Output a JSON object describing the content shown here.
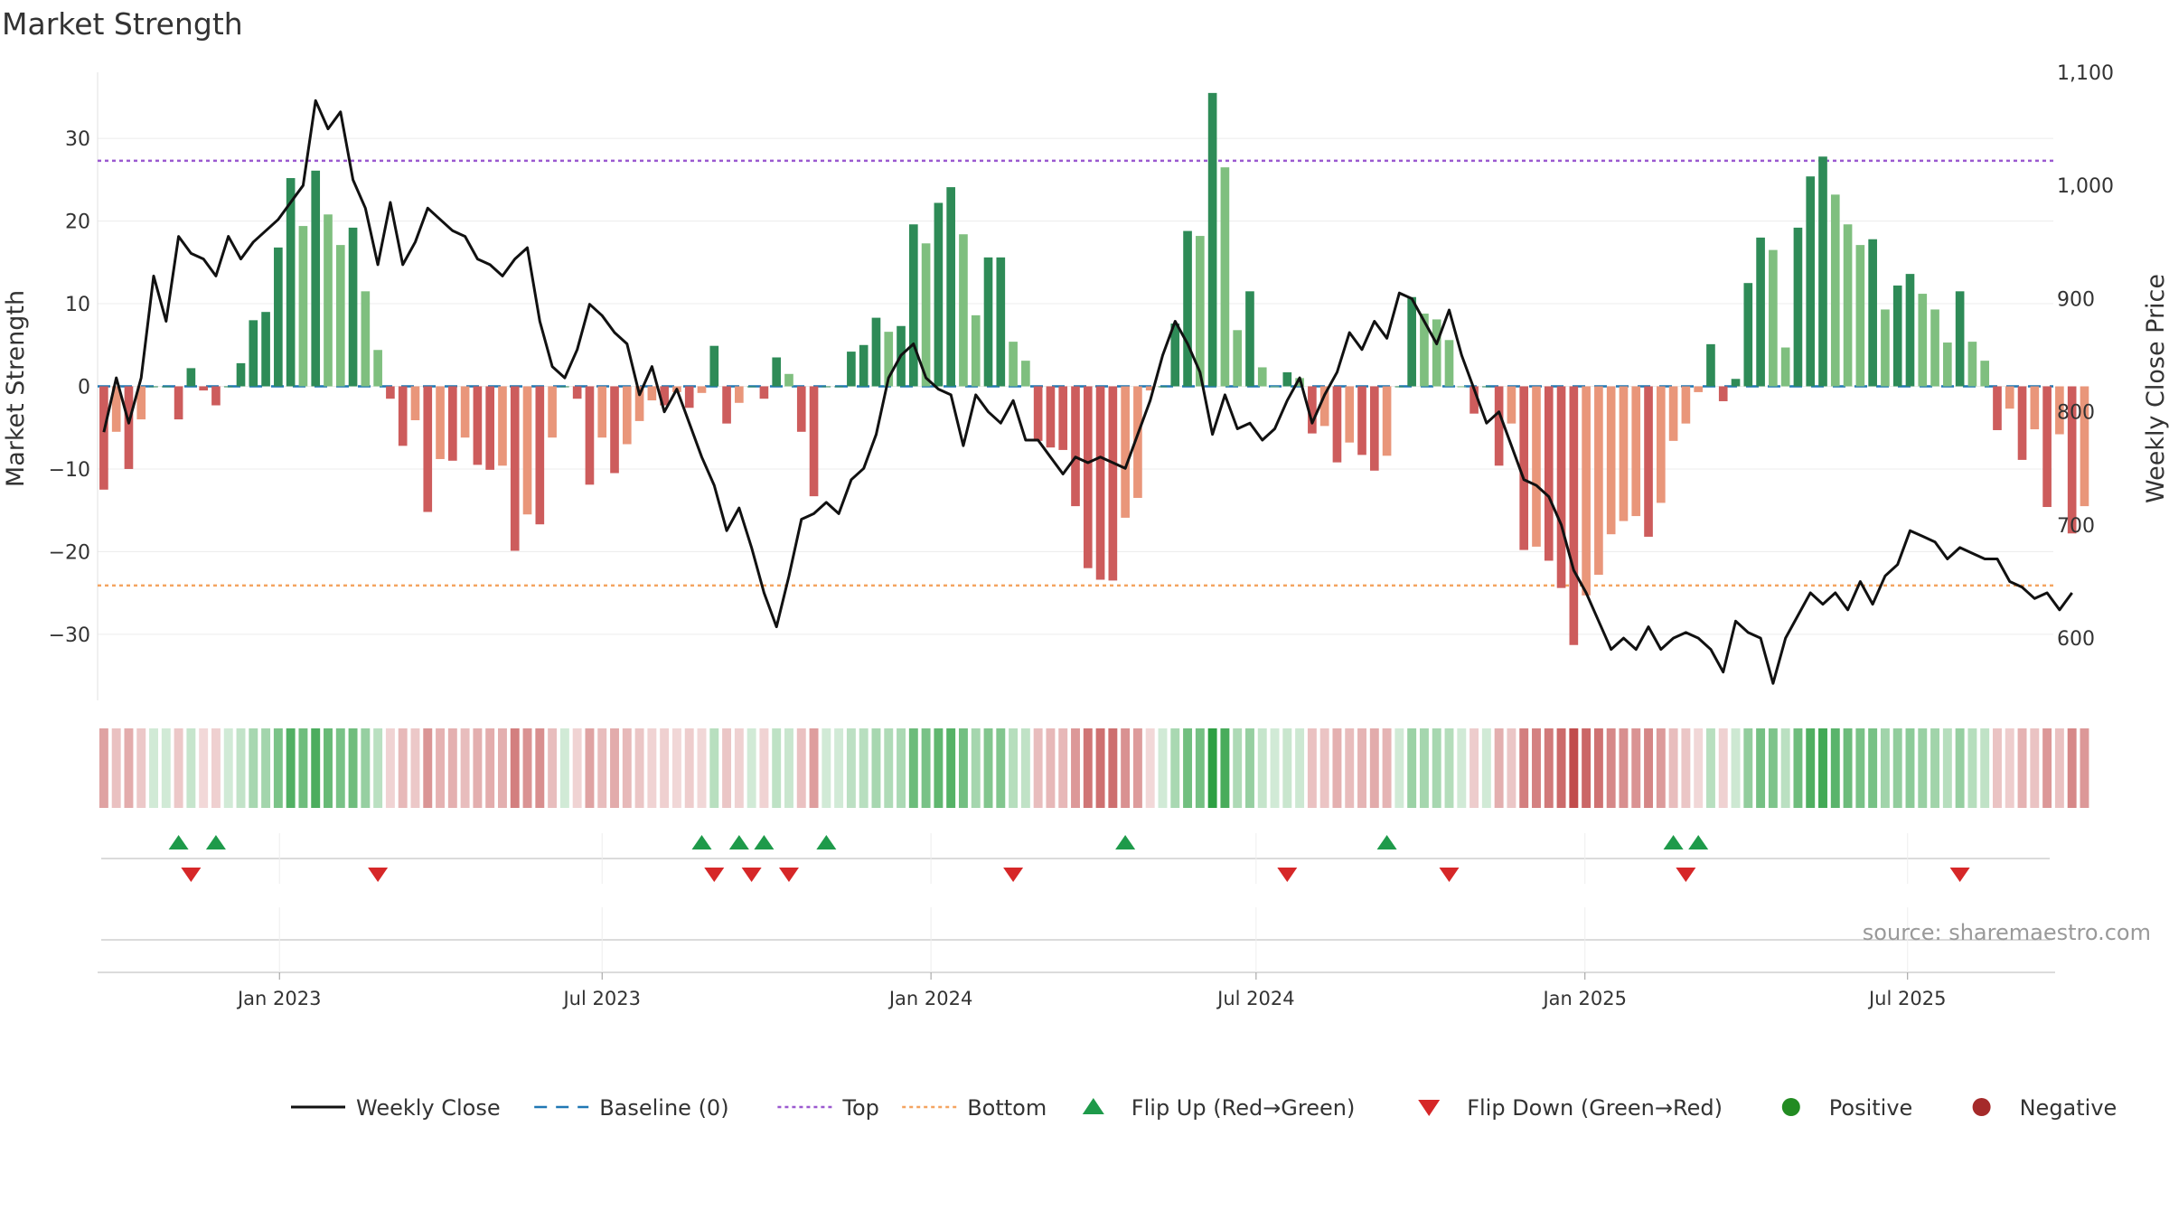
{
  "chart_data": {
    "type": "bar",
    "title": "Market Strength",
    "ylabel_left": "Market Strength",
    "ylabel_right": "Weekly Close Price",
    "ylim_left": [
      -38,
      38
    ],
    "ylim_right": [
      545,
      1100
    ],
    "yticks_left": [
      30,
      20,
      10,
      0,
      -10,
      -20,
      -30
    ],
    "yticks_left_labels": [
      "30",
      "20",
      "10",
      "0",
      "−10",
      "−20",
      "−30"
    ],
    "yticks_right": [
      1100,
      1000,
      900,
      800,
      700,
      600
    ],
    "yticks_right_labels": [
      "1,100",
      "1,000",
      "900",
      "800",
      "700",
      "600"
    ],
    "x_range_weeks": [
      0,
      157
    ],
    "xticks": [
      {
        "label": "Jan 2023",
        "week": 14.6
      },
      {
        "label": "Jul 2023",
        "week": 40.5
      },
      {
        "label": "Jan 2024",
        "week": 66.9
      },
      {
        "label": "Jul 2024",
        "week": 93.0
      },
      {
        "label": "Jan 2025",
        "week": 119.4
      },
      {
        "label": "Jul 2025",
        "week": 145.3
      }
    ],
    "top_level": 27.3,
    "bottom_level": -24.1,
    "strength_values": [
      -12.5,
      -5.5,
      -10,
      -4,
      0,
      0,
      -4,
      2.2,
      -0.5,
      -2.3,
      0,
      2.8,
      8,
      9,
      16.8,
      25.2,
      19.4,
      26.1,
      20.8,
      17.1,
      19.2,
      11.5,
      4.4,
      -1.5,
      -7.2,
      -4.1,
      -15.2,
      -8.8,
      -9,
      -6.2,
      -9.5,
      -10.1,
      -9.6,
      -19.9,
      -15.5,
      -16.7,
      -6.2,
      0,
      -1.5,
      -11.9,
      -6.2,
      -10.5,
      -7,
      -4.2,
      -1.7,
      -2.3,
      -0.7,
      -2.6,
      -0.8,
      4.9,
      -4.5,
      -2,
      0,
      -1.5,
      3.5,
      1.5,
      -5.5,
      -13.3,
      0,
      0,
      4.2,
      5,
      8.3,
      6.6,
      7.3,
      19.6,
      17.3,
      22.2,
      24.1,
      18.4,
      8.6,
      15.6,
      15.6,
      5.4,
      3.1,
      -6.6,
      -7.4,
      -7.7,
      -14.5,
      -22,
      -23.4,
      -23.5,
      -15.9,
      -13.5,
      -0.5,
      0,
      7.6,
      18.8,
      18.2,
      35.5,
      26.5,
      6.8,
      11.5,
      2.3,
      0,
      1.7,
      1,
      -5.7,
      -4.8,
      -9.2,
      -6.8,
      -8.3,
      -10.2,
      -8.4,
      0,
      10.8,
      8.8,
      8.1,
      5.6,
      0,
      -3.3,
      0,
      -9.6,
      -4.5,
      -19.8,
      -19.4,
      -21.1,
      -24.4,
      -31.3,
      -25.3,
      -22.8,
      -17.9,
      -16.3,
      -15.7,
      -18.2,
      -14.1,
      -6.6,
      -4.5,
      -0.7,
      5.1,
      -1.8,
      0.9,
      12.5,
      18,
      16.5,
      4.7,
      19.2,
      25.4,
      27.8,
      23.2,
      19.6,
      17.1,
      17.8,
      9.3,
      12.2,
      13.6,
      11.2,
      9.3,
      5.3,
      11.5,
      5.4,
      3.1,
      -5.3,
      -2.7,
      -8.9,
      -5.2,
      -14.6,
      -5.8,
      -17.8,
      -14.5
    ],
    "close_values": [
      782,
      830,
      790,
      830,
      920,
      880,
      955,
      940,
      935,
      920,
      955,
      935,
      950,
      960,
      970,
      985,
      1000,
      1075,
      1050,
      1065,
      1005,
      980,
      930,
      985,
      930,
      950,
      980,
      970,
      960,
      955,
      935,
      930,
      920,
      935,
      945,
      880,
      840,
      830,
      855,
      895,
      885,
      870,
      860,
      815,
      840,
      800,
      820,
      790,
      760,
      735,
      695,
      715,
      680,
      640,
      610,
      655,
      705,
      710,
      720,
      710,
      740,
      750,
      780,
      830,
      850,
      860,
      830,
      820,
      815,
      770,
      815,
      800,
      790,
      810,
      775,
      775,
      760,
      745,
      760,
      755,
      760,
      755,
      750,
      780,
      810,
      850,
      880,
      860,
      835,
      780,
      815,
      785,
      790,
      775,
      785,
      810,
      830,
      790,
      815,
      835,
      870,
      855,
      880,
      865,
      905,
      900,
      880,
      860,
      890,
      850,
      820,
      790,
      800,
      770,
      740,
      735,
      725,
      700,
      660,
      640,
      615,
      590,
      600,
      590,
      610,
      590,
      600,
      605,
      600,
      590,
      570,
      615,
      605,
      600,
      560,
      600,
      620,
      640,
      630,
      640,
      625,
      650,
      630,
      655,
      665,
      695,
      690,
      685,
      670,
      680,
      675,
      670,
      670,
      650,
      645,
      635,
      640,
      625,
      640
    ],
    "heat_values": [
      -12.5,
      -5.5,
      -10,
      -4,
      0,
      0,
      -4,
      2.2,
      -0.5,
      -2.3,
      0,
      2.8,
      8,
      9,
      16.8,
      25.2,
      19.4,
      26.1,
      20.8,
      17.1,
      19.2,
      11.5,
      4.4,
      -1.5,
      -7.2,
      -4.1,
      -15.2,
      -8.8,
      -9,
      -6.2,
      -9.5,
      -10.1,
      -9.6,
      -19.9,
      -15.5,
      -16.7,
      -6.2,
      0,
      -1.5,
      -11.9,
      -6.2,
      -10.5,
      -7,
      -4.2,
      -1.7,
      -2.3,
      -0.7,
      -2.6,
      -0.8,
      4.9,
      -4.5,
      -2,
      0,
      -1.5,
      3.5,
      1.5,
      -5.5,
      -13.3,
      0,
      0,
      4.2,
      5,
      8.3,
      6.6,
      7.3,
      19.6,
      17.3,
      22.2,
      24.1,
      18.4,
      8.6,
      15.6,
      15.6,
      5.4,
      3.1,
      -6.6,
      -7.4,
      -7.7,
      -14.5,
      -22,
      -23.4,
      -23.5,
      -15.9,
      -13.5,
      -0.5,
      0,
      7.6,
      18.8,
      18.2,
      35.5,
      26.5,
      6.8,
      11.5,
      2.3,
      0,
      1.7,
      1,
      -5.7,
      -4.8,
      -9.2,
      -6.8,
      -8.3,
      -10.2,
      -8.4,
      0,
      10.8,
      8.8,
      8.1,
      5.6,
      0,
      -3.3,
      0,
      -9.6,
      -4.5,
      -19.8,
      -19.4,
      -21.1,
      -24.4,
      -31.3,
      -25.3,
      -22.8,
      -17.9,
      -16.3,
      -15.7,
      -18.2,
      -14.1,
      -6.6,
      -4.5,
      -0.7,
      5.1,
      -1.8,
      0.9,
      12.5,
      18,
      16.5,
      4.7,
      19.2,
      25.4,
      27.8,
      23.2,
      19.6,
      17.1,
      17.8,
      9.3,
      12.2,
      13.6,
      11.2,
      9.3,
      5.3,
      11.5,
      5.4,
      3.1,
      -5.3,
      -2.7,
      -8.9,
      -5.2,
      -14.6,
      -5.8,
      -17.8,
      -14.5
    ],
    "flip_up_weeks": [
      6,
      9,
      48,
      51,
      53,
      58,
      82,
      103,
      126,
      128
    ],
    "flip_down_weeks": [
      7,
      22,
      49,
      52,
      55,
      73,
      95,
      108,
      127,
      149
    ],
    "legend": [
      "Weekly Close",
      "Baseline (0)",
      "Top",
      "Bottom",
      "Flip Up (Red→Green)",
      "Flip Down (Green→Red)",
      "Positive",
      "Negative"
    ],
    "source": "source: sharemaestro.com"
  },
  "colors": {
    "pos_strong": "#2e8b57",
    "pos_light": "#7fbf7f",
    "neg_strong": "#cd5c5c",
    "neg_light": "#e9967a",
    "close_line": "#111111",
    "baseline": "#1f77b4",
    "top": "#9b59d0",
    "bottom": "#f4a460",
    "flip_up": "#1e9a4a",
    "flip_down": "#d62728",
    "positive_dot": "#228b22",
    "negative_dot": "#a52a2a"
  }
}
